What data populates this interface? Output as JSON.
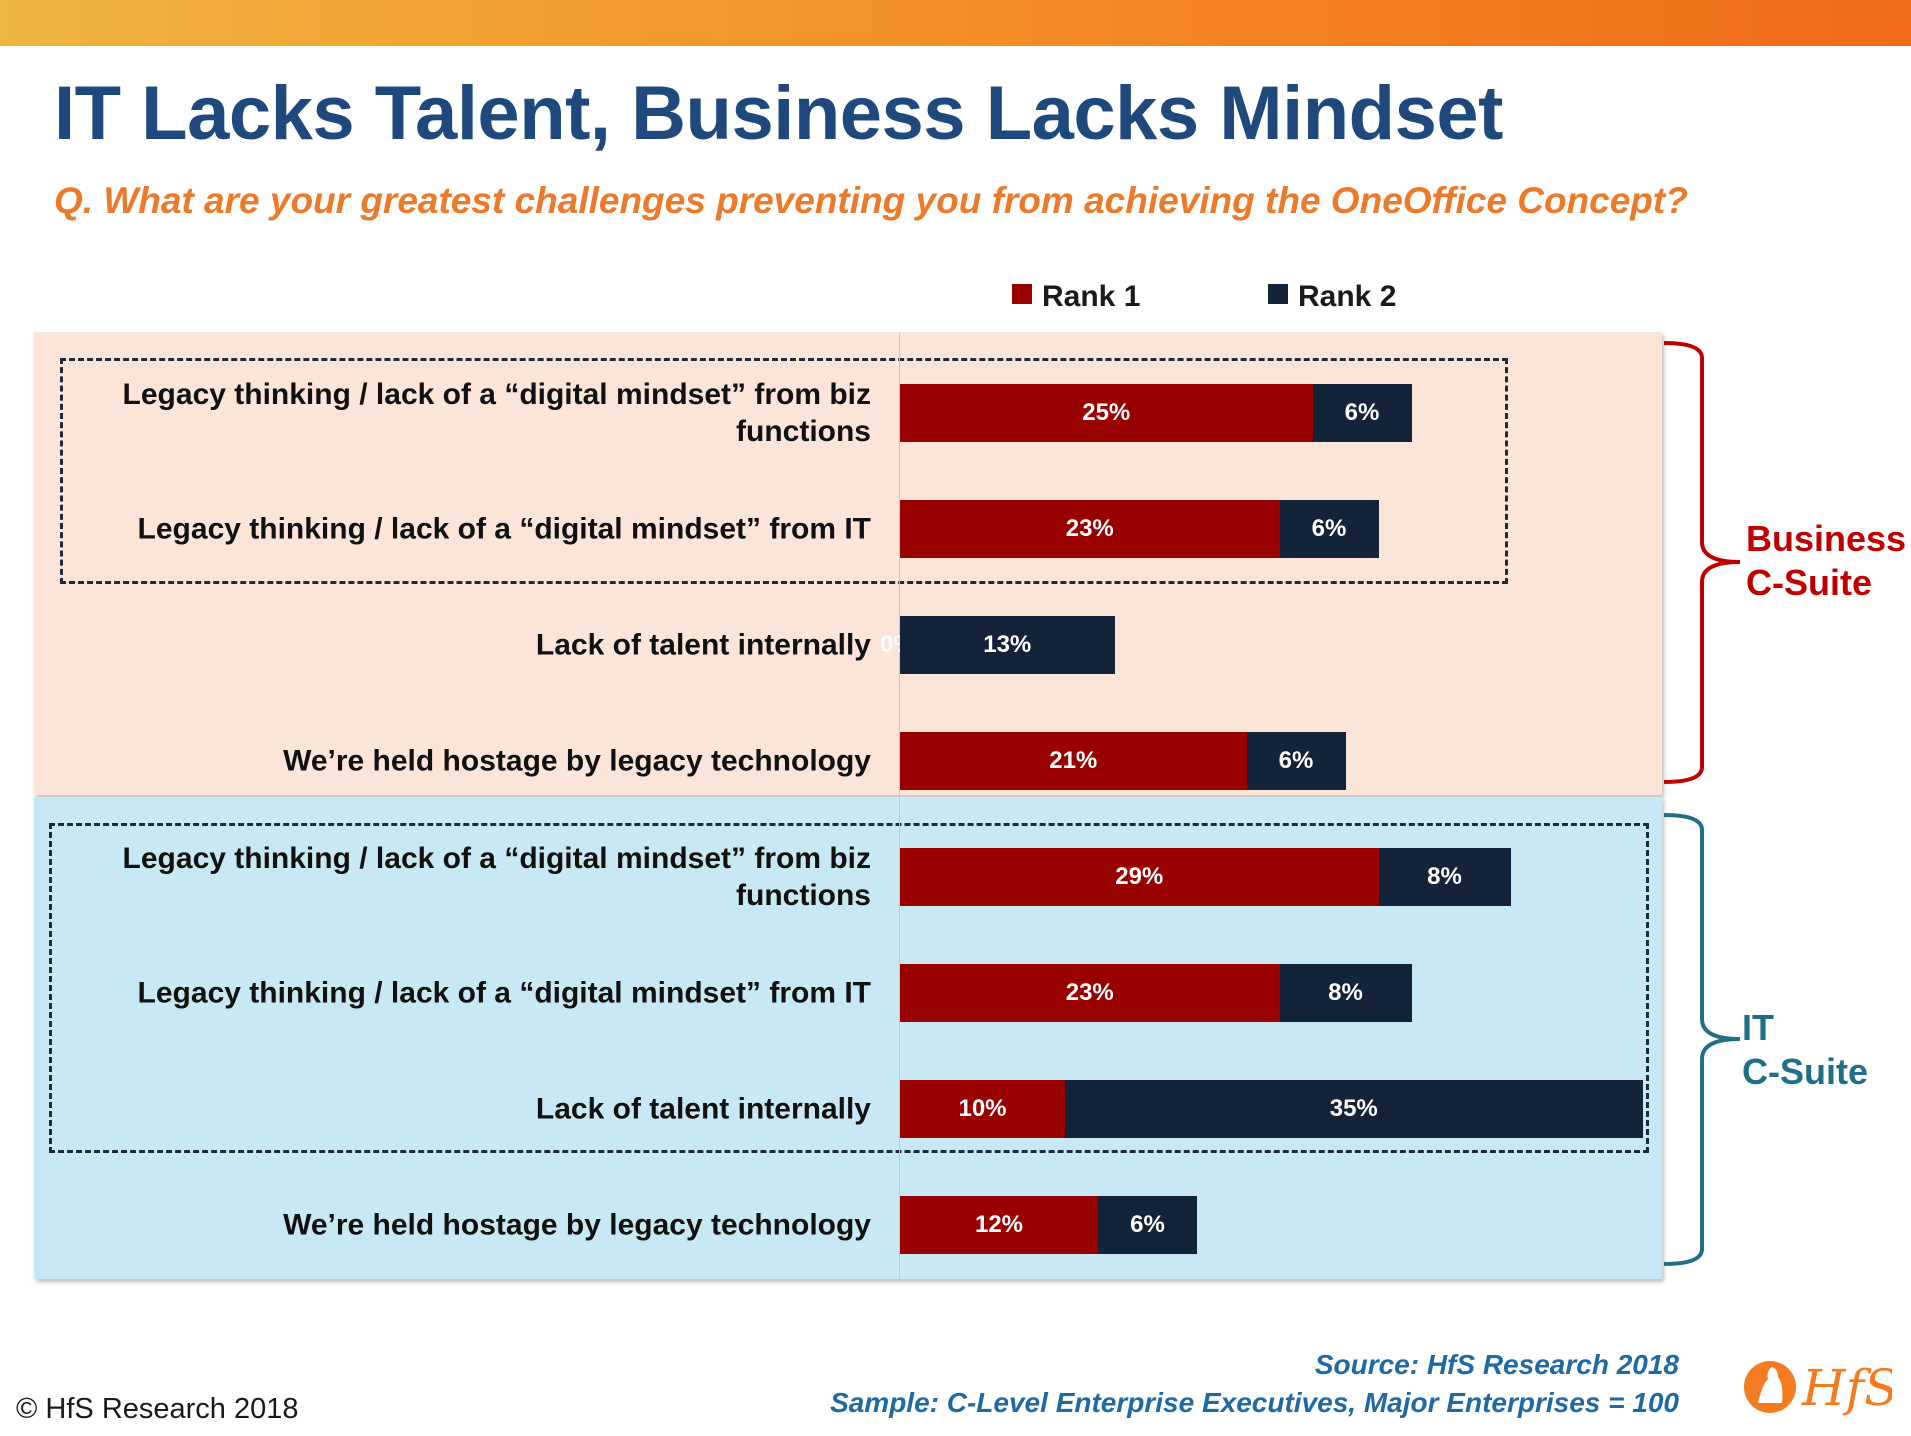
{
  "title": "IT Lacks Talent, Business Lacks Mindset",
  "subtitle": "Q. What are your greatest challenges preventing you from achieving the OneOffice Concept?",
  "legend": [
    {
      "label": "Rank 1",
      "color": "#990000"
    },
    {
      "label": "Rank 2",
      "color": "#13233a"
    }
  ],
  "groups": [
    {
      "label_line1": "Business",
      "label_line2": "C-Suite",
      "color": "#c00000"
    },
    {
      "label_line1": "IT",
      "label_line2": "C-Suite",
      "color": "#1f6f86"
    }
  ],
  "chart_data": {
    "type": "bar",
    "orientation": "horizontal",
    "stacked": true,
    "title": "IT Lacks Talent, Business Lacks Mindset",
    "series_names": [
      "Rank 1",
      "Rank 2"
    ],
    "rows": [
      {
        "group": "Business C-Suite",
        "category": "Legacy thinking / lack of a “digital mindset” from biz functions",
        "rank1": 25,
        "rank2": 6,
        "rank1_label": "25%",
        "rank2_label": "6%"
      },
      {
        "group": "Business C-Suite",
        "category": "Legacy thinking / lack of a “digital mindset” from IT",
        "rank1": 23,
        "rank2": 6,
        "rank1_label": "23%",
        "rank2_label": "6%"
      },
      {
        "group": "Business C-Suite",
        "category": "Lack of talent internally",
        "rank1": 0,
        "rank2": 13,
        "rank1_label": "0%",
        "rank2_label": "13%"
      },
      {
        "group": "Business C-Suite",
        "category": "We’re held hostage by legacy technology",
        "rank1": 21,
        "rank2": 6,
        "rank1_label": "21%",
        "rank2_label": "6%"
      },
      {
        "group": "IT C-Suite",
        "category": "Legacy thinking / lack of a “digital mindset” from biz functions",
        "rank1": 29,
        "rank2": 8,
        "rank1_label": "29%",
        "rank2_label": "8%"
      },
      {
        "group": "IT C-Suite",
        "category": "Legacy thinking / lack of a “digital mindset” from IT",
        "rank1": 23,
        "rank2": 8,
        "rank1_label": "23%",
        "rank2_label": "8%"
      },
      {
        "group": "IT C-Suite",
        "category": "Lack of talent internally",
        "rank1": 10,
        "rank2": 35,
        "rank1_label": "10%",
        "rank2_label": "35%"
      },
      {
        "group": "IT C-Suite",
        "category": "We’re held hostage by legacy technology",
        "rank1": 12,
        "rank2": 6,
        "rank1_label": "12%",
        "rank2_label": "6%"
      }
    ],
    "xlim": [
      0,
      45
    ],
    "grid": false,
    "legend_position": "top"
  },
  "footer": {
    "copyright": "© HfS Research 2018",
    "source": "Source: HfS Research 2018",
    "sample": "Sample: C-Level Enterprise Executives, Major Enterprises = 100",
    "logo_text": "HfS"
  }
}
